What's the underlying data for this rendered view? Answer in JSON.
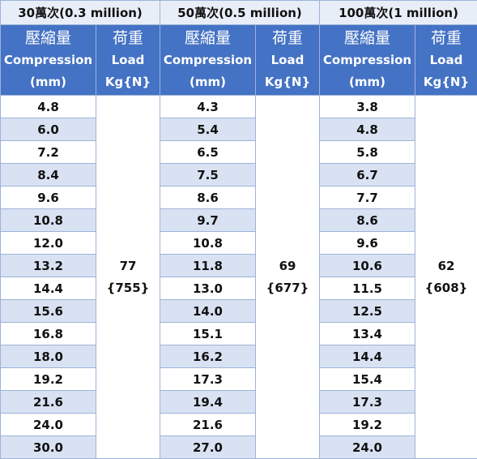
{
  "groups": [
    {
      "title": "30萬次(0.3 million)",
      "compression_header": [
        "壓縮量",
        "Compression",
        "(mm)"
      ],
      "load_header": [
        "荷重",
        "Load",
        "Kg{N}"
      ],
      "compression": [
        "4.8",
        "6.0",
        "7.2",
        "8.4",
        "9.6",
        "10.8",
        "12.0",
        "13.2",
        "14.4",
        "15.6",
        "16.8",
        "18.0",
        "19.2",
        "21.6",
        "24.0",
        "30.0"
      ],
      "load_kg": "77",
      "load_n": "{755}"
    },
    {
      "title": "50萬次(0.5 million)",
      "compression_header": [
        "壓縮量",
        "Compression",
        "(mm)"
      ],
      "load_header": [
        "荷重",
        "Load",
        "Kg{N}"
      ],
      "compression": [
        "4.3",
        "5.4",
        "6.5",
        "7.5",
        "8.6",
        "9.7",
        "10.8",
        "11.8",
        "13.0",
        "14.0",
        "15.1",
        "16.2",
        "17.3",
        "19.4",
        "21.6",
        "27.0"
      ],
      "load_kg": "69",
      "load_n": "{677}"
    },
    {
      "title": "100萬次(1 million)",
      "compression_header": [
        "壓縮量",
        "Compression",
        "(mm)"
      ],
      "load_header": [
        "荷重",
        "Load",
        "Kg{N}"
      ],
      "compression": [
        "3.8",
        "4.8",
        "5.8",
        "6.7",
        "7.7",
        "8.6",
        "9.6",
        "10.6",
        "11.5",
        "12.5",
        "13.4",
        "14.4",
        "15.4",
        "17.3",
        "19.2",
        "24.0"
      ],
      "load_kg": "62",
      "load_n": "{608}"
    }
  ],
  "colors": {
    "header_blue": "#4472c4",
    "stripe": "#d9e2f3",
    "group_bg": "#e8eef8"
  }
}
